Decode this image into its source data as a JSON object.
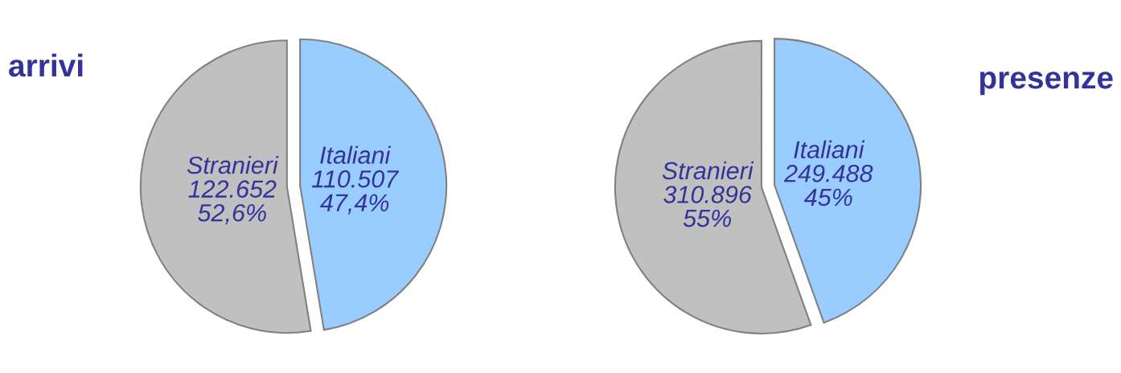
{
  "chart_data": [
    {
      "type": "pie",
      "title": "arrivi",
      "categories": [
        "Italiani",
        "Stranieri"
      ],
      "values": [
        110507,
        122652
      ],
      "colors": [
        "#99ccff",
        "#c0c0c0"
      ],
      "value_labels": [
        "110.507\n47,4%",
        "122.652\n52,6%"
      ]
    },
    {
      "type": "pie",
      "title": "presenze",
      "categories": [
        "Italiani",
        "Stranieri"
      ],
      "values": [
        249488,
        310896
      ],
      "colors": [
        "#99ccff",
        "#c0c0c0"
      ],
      "value_labels": [
        "249.488\n45%",
        "310.896\n55%"
      ]
    }
  ]
}
